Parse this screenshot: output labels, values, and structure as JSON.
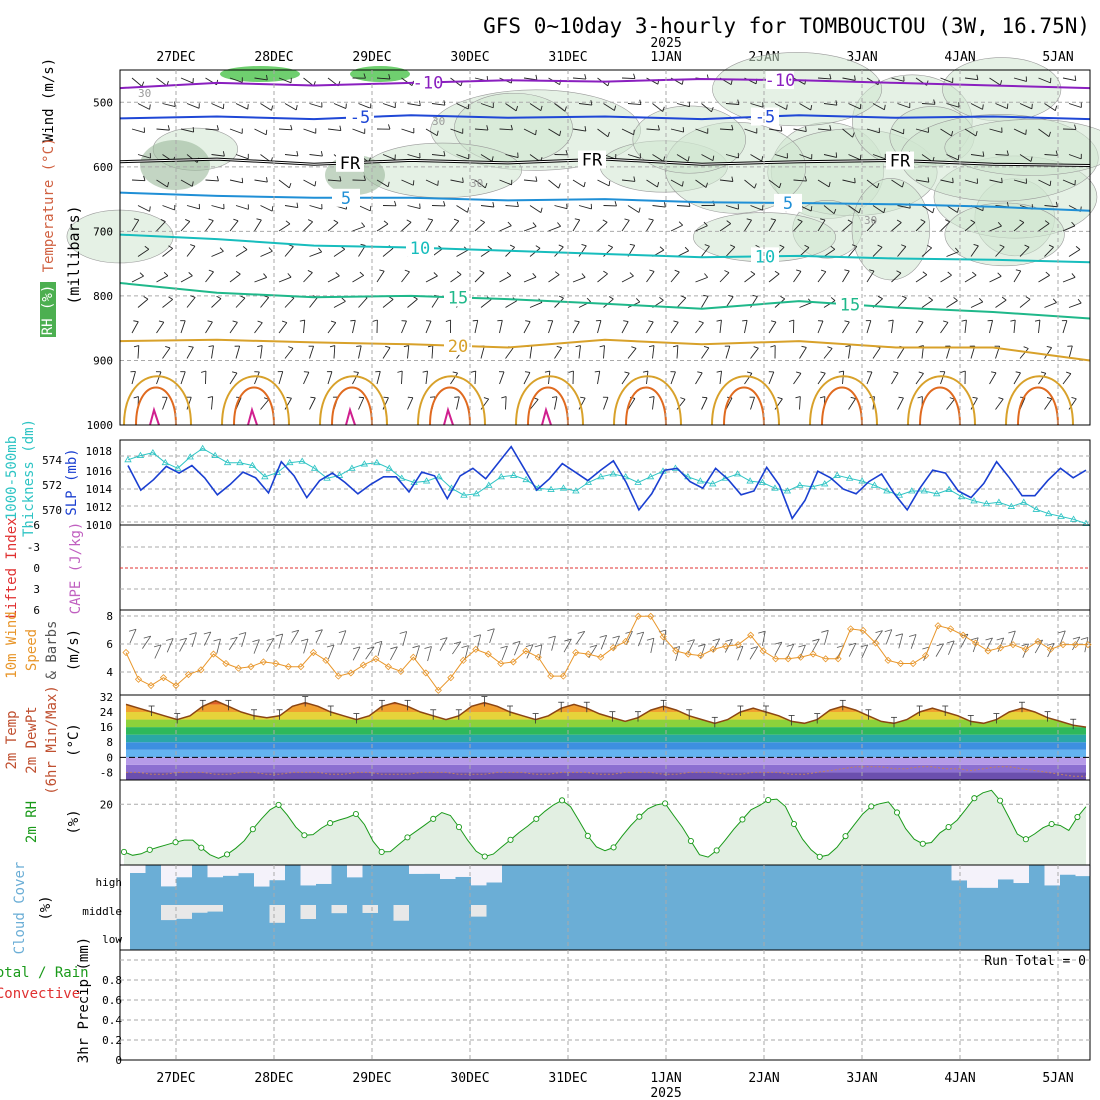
{
  "title": "GFS 0~10day 3-hourly for TOMBOUCTOU (3W, 16.75N)",
  "year": "2025",
  "dates": [
    "27DEC",
    "28DEC",
    "29DEC",
    "30DEC",
    "31DEC",
    "1JAN",
    "2JAN",
    "3JAN",
    "4JAN",
    "5JAN"
  ],
  "colors": {
    "freezing": "#000000",
    "minus10": "#8a1fbf",
    "minus5": "#1f47d6",
    "plus5": "#1f8fd6",
    "plus10": "#17bdbd",
    "plus15": "#1fb88a",
    "plus20": "#d8a12a",
    "plus25": "#e06a1f",
    "plus30": "#d01f8f",
    "thickness": "#2ec4c4",
    "slp": "#1a3fd1",
    "wind10m": "#e8962a",
    "rh2m": "#1a9a1a",
    "cloud": "#6baed6",
    "lifted": "#e03030",
    "cape": "#c060c0"
  },
  "chart_data": [
    {
      "type": "line",
      "panel": "upper-air",
      "ylabel": "(millibars)",
      "ylabels": [
        "Wind (m/s)",
        "Temperature (°C)",
        "RH (%)"
      ],
      "ylim": [
        450,
        1000
      ],
      "yticks": [
        "500",
        "600",
        "700",
        "800",
        "900",
        "1000"
      ],
      "series": [
        {
          "name": "-10",
          "level": [
            478,
            470,
            474,
            470,
            466,
            468,
            464,
            466,
            470,
            474,
            478
          ]
        },
        {
          "name": "-5",
          "level": [
            525,
            522,
            526,
            520,
            524,
            522,
            526,
            520,
            524,
            522,
            526
          ]
        },
        {
          "name": "FR",
          "level": [
            592,
            588,
            596,
            590,
            594,
            588,
            596,
            592,
            590,
            596,
            598
          ]
        },
        {
          "name": "5",
          "level": [
            640,
            645,
            648,
            648,
            652,
            650,
            655,
            656,
            658,
            662,
            668
          ]
        },
        {
          "name": "10",
          "level": [
            705,
            712,
            722,
            725,
            730,
            735,
            740,
            738,
            742,
            744,
            748
          ]
        },
        {
          "name": "15",
          "level": [
            780,
            795,
            802,
            800,
            805,
            812,
            820,
            808,
            818,
            825,
            835
          ]
        },
        {
          "name": "20",
          "level": [
            870,
            868,
            872,
            875,
            880,
            868,
            875,
            870,
            880,
            880,
            900
          ]
        }
      ],
      "contour_labels": [
        "-10",
        "-10",
        "-5",
        "-5",
        "FR",
        "FR",
        "FR",
        "5",
        "5",
        "10",
        "10",
        "15",
        "15",
        "20",
        "30",
        "30",
        "30",
        "30"
      ]
    },
    {
      "type": "line",
      "panel": "thickness-slp",
      "ylabels": [
        "1000-500mb Thickness (dm)",
        "SLP (mb)"
      ],
      "yticks_left": [
        "570",
        "572",
        "574"
      ],
      "yticks_right": [
        "1010",
        "1012",
        "1014",
        "1016",
        "1018"
      ],
      "series": [
        {
          "name": "1000-500mb Thickness",
          "values": [
            573.6,
            573.9,
            574.1,
            573.4,
            573.0,
            573.8,
            574.4,
            573.9,
            573.4,
            573.4,
            573.2,
            572.4,
            572.7,
            573.4,
            573.5,
            573.0,
            572.3,
            572.5,
            573.0,
            573.3,
            573.4,
            573.0,
            572.3,
            572.0,
            572.1,
            572.4,
            571.6,
            571.1,
            571.2,
            571.8,
            572.4,
            572.5,
            572.2,
            571.6,
            571.5,
            571.6,
            571.4,
            572.0,
            572.4,
            572.6,
            572.4,
            572.0,
            572.4,
            572.8,
            573.0,
            572.4,
            572.1,
            571.9,
            572.3,
            572.6,
            572.1,
            572.0,
            571.6,
            571.4,
            571.8,
            571.7,
            571.9,
            572.5,
            572.3,
            572.1,
            571.8,
            571.4,
            571.1,
            571.4,
            571.4,
            571.2,
            571.5,
            571.0,
            570.7,
            570.5,
            570.6,
            570.3,
            570.6,
            570.1,
            569.8,
            569.6,
            569.4,
            569.1
          ],
          "ylim": [
            569,
            575
          ]
        },
        {
          "name": "SLP",
          "values": [
            1016.3,
            1013.7,
            1014.8,
            1016.2,
            1015.5,
            1016.3,
            1015.0,
            1013.2,
            1014.3,
            1015.6,
            1015.0,
            1013.4,
            1016.7,
            1015.2,
            1012.9,
            1014.7,
            1015.5,
            1014.5,
            1013.3,
            1014.3,
            1015.1,
            1015.1,
            1013.5,
            1015.6,
            1015.2,
            1012.8,
            1015.2,
            1016.0,
            1014.9,
            1016.6,
            1018.3,
            1016.0,
            1013.7,
            1014.9,
            1016.5,
            1015.6,
            1014.7,
            1015.8,
            1016.8,
            1014.5,
            1011.6,
            1013.3,
            1015.8,
            1016.0,
            1014.6,
            1013.9,
            1016.0,
            1014.8,
            1013.2,
            1013.6,
            1016.1,
            1014.2,
            1010.7,
            1012.6,
            1015.7,
            1015.0,
            1013.8,
            1013.3,
            1014.6,
            1015.4,
            1013.3,
            1011.6,
            1013.9,
            1015.8,
            1015.5,
            1013.6,
            1012.9,
            1014.4,
            1016.7,
            1015.0,
            1013.1,
            1013.1,
            1014.7,
            1016.0,
            1015.0,
            1015.8
          ],
          "ylim": [
            1010,
            1019
          ]
        }
      ]
    },
    {
      "type": "line",
      "panel": "lifted-cape",
      "ylabels": [
        "Lifted Index",
        "CAPE (J/kg)"
      ],
      "yticks": [
        "-6",
        "-3",
        "0",
        "3",
        "6"
      ],
      "ylim": [
        -6,
        6
      ],
      "series": [
        {
          "name": "Lifted Index",
          "values": []
        }
      ]
    },
    {
      "type": "line",
      "panel": "wind10m",
      "ylabels": [
        "10m Wind",
        "Speed",
        "& Barbs",
        "(m/s)"
      ],
      "yticks": [
        "4",
        "6",
        "8"
      ],
      "ylim": [
        3,
        8.4
      ],
      "series": [
        {
          "name": "10m Wind Speed",
          "values": [
            5.7,
            4.0,
            3.6,
            4.1,
            3.6,
            4.3,
            4.6,
            5.6,
            5.0,
            4.7,
            4.8,
            5.1,
            5.0,
            4.8,
            4.8,
            5.7,
            5.2,
            4.2,
            4.4,
            4.9,
            5.3,
            4.8,
            4.5,
            5.4,
            4.4,
            3.3,
            4.1,
            5.2,
            5.9,
            5.6,
            5.0,
            5.1,
            5.8,
            5.4,
            4.2,
            4.2,
            5.7,
            5.6,
            5.4,
            6.0,
            6.4,
            8.0,
            8.0,
            6.7,
            5.8,
            5.6,
            5.5,
            5.9,
            6.1,
            6.2,
            6.8,
            5.8,
            5.3,
            5.3,
            5.4,
            5.6,
            5.3,
            5.3,
            7.2,
            7.1,
            6.3,
            5.2,
            5.0,
            5.0,
            5.5,
            7.4,
            7.2,
            6.8,
            6.3,
            5.8,
            6.0,
            6.2,
            5.9,
            6.4,
            5.9,
            6.2,
            6.2,
            6.2
          ]
        }
      ]
    },
    {
      "type": "area",
      "panel": "temperature",
      "ylabels": [
        "2m Temp",
        "2m DewPt",
        "(6hr Min/Max)",
        "(°C)"
      ],
      "yticks": [
        "-8",
        "0",
        "8",
        "16",
        "24",
        "32"
      ],
      "ylim": [
        -12,
        33
      ],
      "series": [
        {
          "name": "2m Temp",
          "values": [
            28,
            26,
            24,
            22,
            20,
            22,
            27,
            30,
            27,
            24,
            22,
            21,
            22,
            27,
            29,
            27,
            24,
            22,
            20,
            22,
            27,
            29,
            27,
            24,
            22,
            20,
            22,
            27,
            29,
            27,
            24,
            22,
            20,
            22,
            26,
            28,
            26,
            23,
            21,
            19,
            21,
            25,
            27,
            25,
            22,
            20,
            18,
            20,
            24,
            26,
            24,
            22,
            19,
            18,
            20,
            25,
            27,
            25,
            22,
            19,
            18,
            20,
            24,
            26,
            24,
            22,
            19,
            18,
            20,
            24,
            26,
            24,
            21,
            19,
            17,
            16
          ]
        },
        {
          "name": "2m DewPt",
          "values": [
            -8,
            -8,
            -9,
            -9,
            -8,
            -8,
            -8,
            -9,
            -9,
            -8,
            -8,
            -9,
            -9,
            -8,
            -8,
            -8,
            -9,
            -9,
            -8,
            -8,
            -9,
            -9,
            -9,
            -8,
            -8,
            -8,
            -9,
            -9,
            -9,
            -8,
            -8,
            -8,
            -9,
            -9,
            -8,
            -8,
            -8,
            -9,
            -9,
            -8,
            -8,
            -8,
            -9,
            -9,
            -8,
            -8,
            -8,
            -9,
            -9,
            -8,
            -8,
            -8,
            -9,
            -9,
            -8,
            -7,
            -6,
            -5,
            -5,
            -5,
            -6,
            -6,
            -5,
            -5,
            -6,
            -6,
            -7,
            -6,
            -5,
            -5,
            -6,
            -7,
            -8,
            -9,
            -10,
            -10
          ]
        }
      ]
    },
    {
      "type": "area",
      "panel": "rh2m",
      "ylabels": [
        "2m RH",
        "(%)"
      ],
      "yticks": [
        "20"
      ],
      "ylim": [
        0,
        28
      ],
      "series": [
        {
          "name": "2m RH",
          "values": [
            4.3,
            3.2,
            3.7,
            5.0,
            5.9,
            6.7,
            7.5,
            8.2,
            8.2,
            5.7,
            3.4,
            2.2,
            3.5,
            5.5,
            8.0,
            11.8,
            15.2,
            18.2,
            19.8,
            16.5,
            12.5,
            9.8,
            10.0,
            12.2,
            13.8,
            14.8,
            15.6,
            16.8,
            13.3,
            7.8,
            4.3,
            4.4,
            6.8,
            9.1,
            11.1,
            13.1,
            15.2,
            17.3,
            16.3,
            12.5,
            8.2,
            4.5,
            2.8,
            3.6,
            6.0,
            8.3,
            10.7,
            12.8,
            15.2,
            17.7,
            19.8,
            21.3,
            19.2,
            14.5,
            9.6,
            6.0,
            4.7,
            5.8,
            9.6,
            13.0,
            15.9,
            18.5,
            19.8,
            20.3,
            16.3,
            12.5,
            7.9,
            3.4,
            2.6,
            4.8,
            8.2,
            11.8,
            15.0,
            18.2,
            19.6,
            21.4,
            21.7,
            19.3,
            13.5,
            8.5,
            5.0,
            2.7,
            3.3,
            5.8,
            9.5,
            13.2,
            16.8,
            19.3,
            20.2,
            20.8,
            17.3,
            12.0,
            8.5,
            7.0,
            7.4,
            10.6,
            12.5,
            14.8,
            18.3,
            22.0,
            23.8,
            24.6,
            21.2,
            15.8,
            10.2,
            8.5,
            10.2,
            12.3,
            13.5,
            13.0,
            11.4,
            15.8,
            19.2
          ]
        }
      ]
    },
    {
      "type": "heatmap",
      "panel": "cloud",
      "ylabels": [
        "Cloud Cover",
        "(%)"
      ],
      "rows": [
        "high",
        "middle",
        "low"
      ]
    },
    {
      "type": "bar",
      "panel": "precip",
      "ylabels": [
        "Total / Rain",
        "Convective",
        "3hr Precip (mm)"
      ],
      "yticks": [
        "0",
        "0.2",
        "0.4",
        "0.6",
        "0.8"
      ],
      "ylim": [
        0,
        1
      ],
      "run_total": "Run Total = 0",
      "values": []
    }
  ]
}
